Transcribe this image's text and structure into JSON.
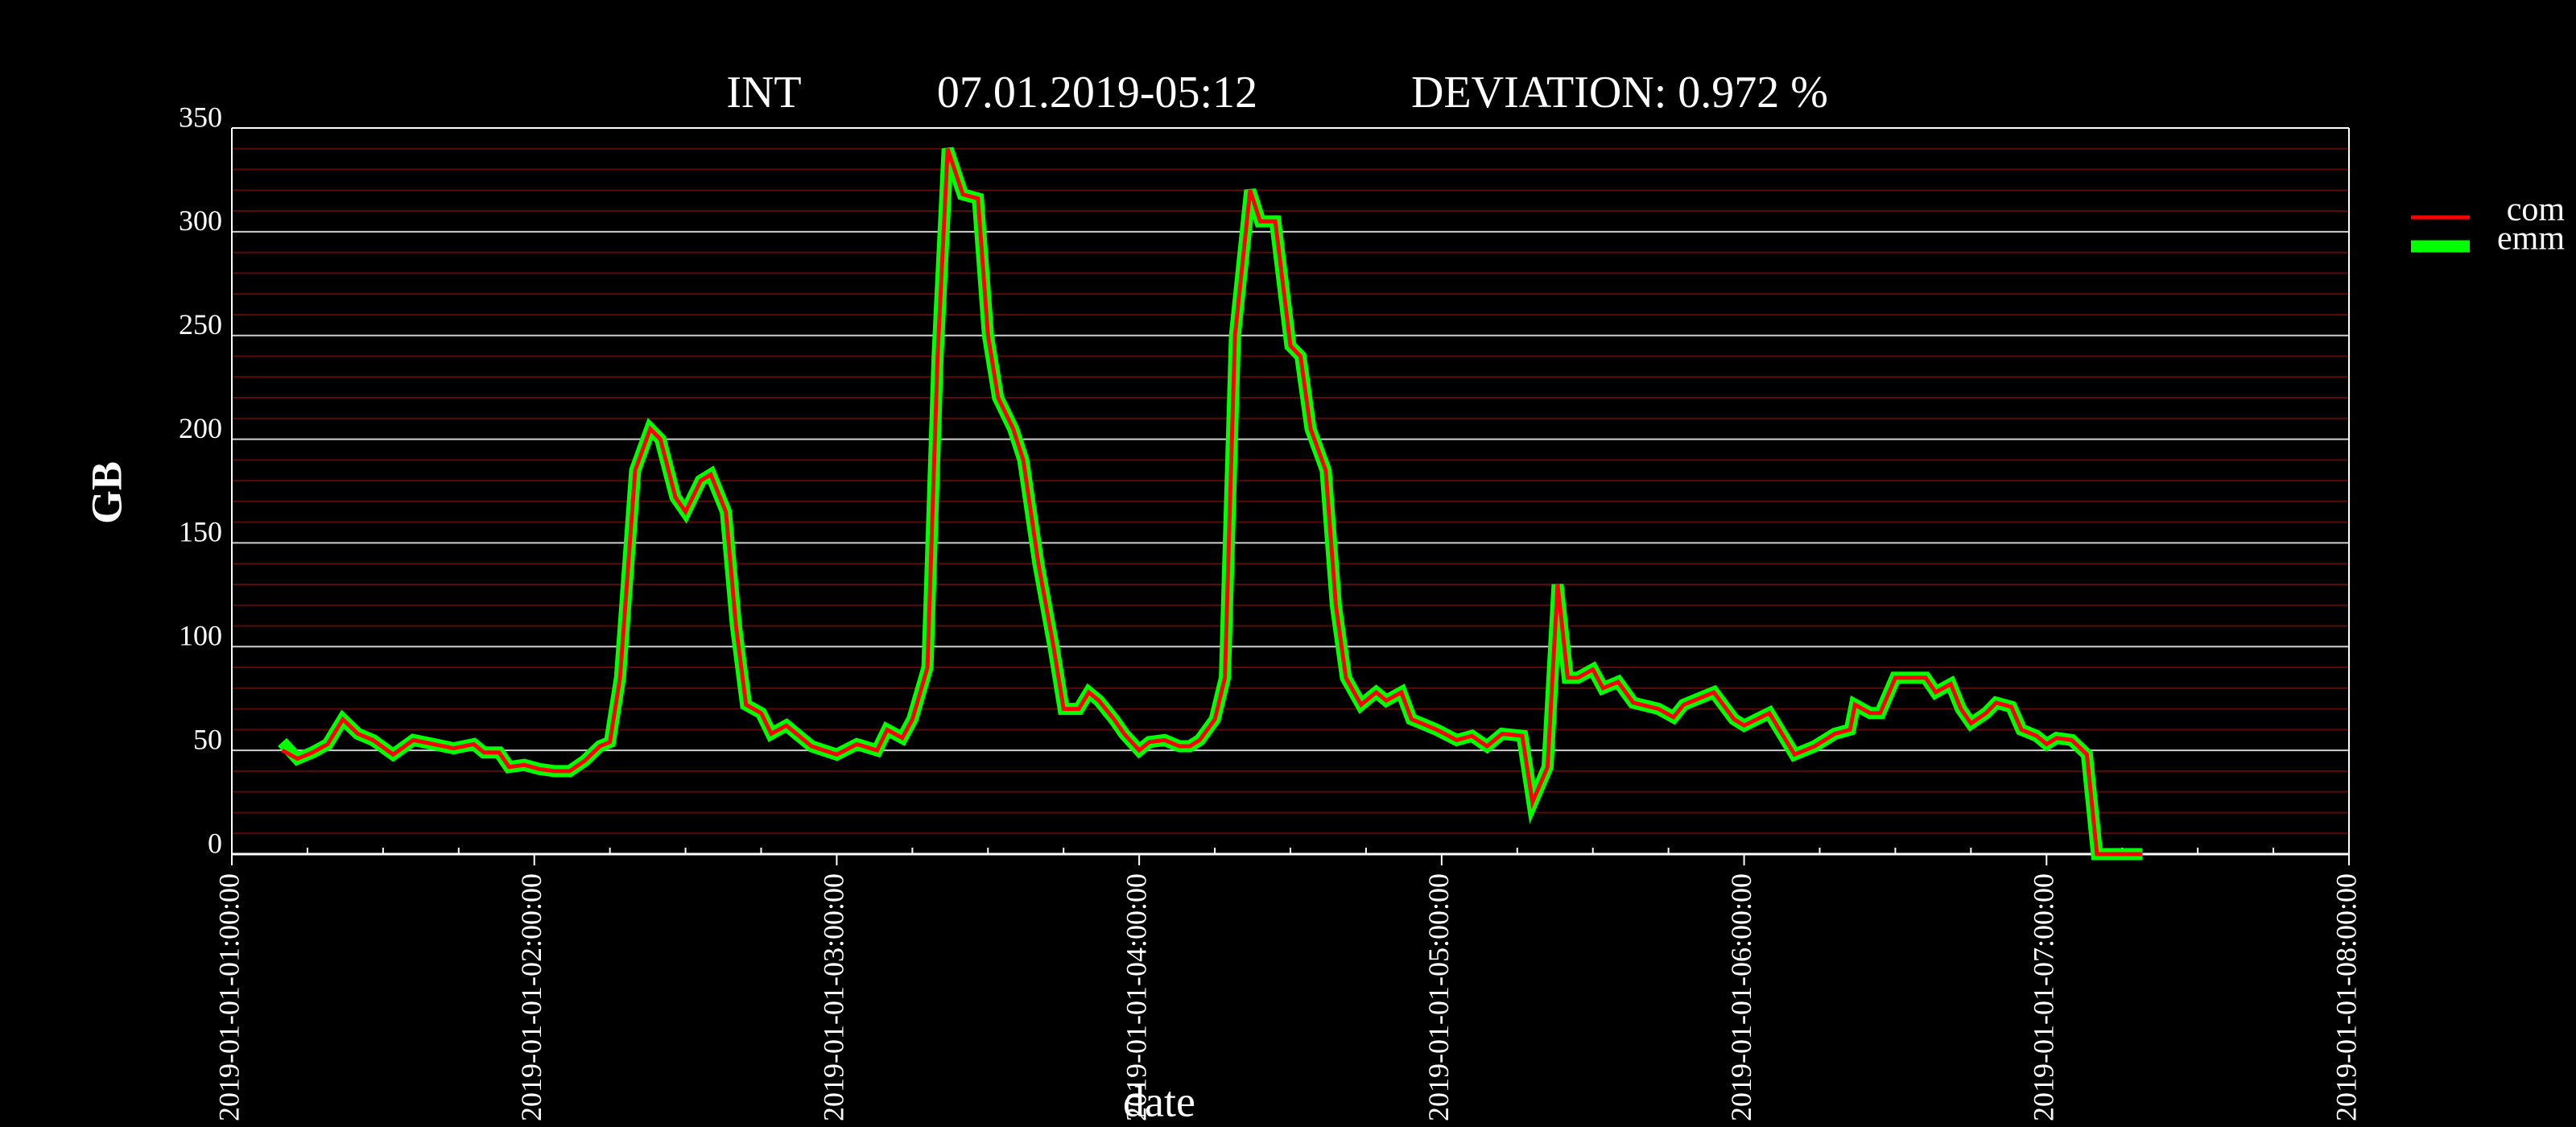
{
  "chart_data": {
    "type": "line",
    "title": "INT",
    "subtitle": "07.01.2019-05:12",
    "annotation": "DEVIATION: 0.972 %",
    "x_label": "date",
    "y_label": "GB",
    "x": [
      "2019-01-01T01:10:00",
      "2019-01-01T01:13:00",
      "2019-01-01T01:16:00",
      "2019-01-01T01:19:00",
      "2019-01-01T01:22:00",
      "2019-01-01T01:25:00",
      "2019-01-01T01:28:00",
      "2019-01-01T01:32:00",
      "2019-01-01T01:36:00",
      "2019-01-01T01:40:00",
      "2019-01-01T01:44:00",
      "2019-01-01T01:48:00",
      "2019-01-01T01:50:00",
      "2019-01-01T01:53:00",
      "2019-01-01T01:55:00",
      "2019-01-01T01:58:00",
      "2019-01-01T02:01:00",
      "2019-01-01T02:04:00",
      "2019-01-01T02:07:00",
      "2019-01-01T02:10:00",
      "2019-01-01T02:13:00",
      "2019-01-01T02:15:00",
      "2019-01-01T02:17:00",
      "2019-01-01T02:20:00",
      "2019-01-01T02:23:00",
      "2019-01-01T02:25:00",
      "2019-01-01T02:28:00",
      "2019-01-01T02:30:00",
      "2019-01-01T02:33:00",
      "2019-01-01T02:35:00",
      "2019-01-01T02:38:00",
      "2019-01-01T02:40:00",
      "2019-01-01T02:42:00",
      "2019-01-01T02:45:00",
      "2019-01-01T02:47:00",
      "2019-01-01T02:50:00",
      "2019-01-01T02:52:00",
      "2019-01-01T02:55:00",
      "2019-01-01T03:00:00",
      "2019-01-01T03:04:00",
      "2019-01-01T03:08:00",
      "2019-01-01T03:10:00",
      "2019-01-01T03:13:00",
      "2019-01-01T03:15:00",
      "2019-01-01T03:18:00",
      "2019-01-01T03:20:00",
      "2019-01-01T03:22:00",
      "2019-01-01T03:25:00",
      "2019-01-01T03:28:00",
      "2019-01-01T03:30:00",
      "2019-01-01T03:32:00",
      "2019-01-01T03:35:00",
      "2019-01-01T03:37:00",
      "2019-01-01T03:40:00",
      "2019-01-01T03:43:00",
      "2019-01-01T03:45:00",
      "2019-01-01T03:48:00",
      "2019-01-01T03:50:00",
      "2019-01-01T03:52:00",
      "2019-01-01T03:55:00",
      "2019-01-01T03:57:00",
      "2019-01-01T04:00:00",
      "2019-01-01T04:02:00",
      "2019-01-01T04:05:00",
      "2019-01-01T04:08:00",
      "2019-01-01T04:10:00",
      "2019-01-01T04:12:00",
      "2019-01-01T04:15:00",
      "2019-01-01T04:17:00",
      "2019-01-01T04:19:00",
      "2019-01-01T04:22:00",
      "2019-01-01T04:24:00",
      "2019-01-01T04:27:00",
      "2019-01-01T04:30:00",
      "2019-01-01T04:32:00",
      "2019-01-01T04:34:00",
      "2019-01-01T04:37:00",
      "2019-01-01T04:39:00",
      "2019-01-01T04:41:00",
      "2019-01-01T04:44:00",
      "2019-01-01T04:47:00",
      "2019-01-01T04:49:00",
      "2019-01-01T04:52:00",
      "2019-01-01T04:54:00",
      "2019-01-01T04:56:00",
      "2019-01-01T04:59:00",
      "2019-01-01T05:03:00",
      "2019-01-01T05:06:00",
      "2019-01-01T05:09:00",
      "2019-01-01T05:12:00",
      "2019-01-01T05:16:00",
      "2019-01-01T05:18:00",
      "2019-01-01T05:21:00",
      "2019-01-01T05:23:00",
      "2019-01-01T05:25:00",
      "2019-01-01T05:27:00",
      "2019-01-01T05:30:00",
      "2019-01-01T05:32:00",
      "2019-01-01T05:35:00",
      "2019-01-01T05:38:00",
      "2019-01-01T05:43:00",
      "2019-01-01T05:46:00",
      "2019-01-01T05:48:00",
      "2019-01-01T05:54:00",
      "2019-01-01T05:58:00",
      "2019-01-01T06:00:00",
      "2019-01-01T06:05:00",
      "2019-01-01T06:07:00",
      "2019-01-01T06:10:00",
      "2019-01-01T06:14:00",
      "2019-01-01T06:18:00",
      "2019-01-01T06:21:00",
      "2019-01-01T06:22:00",
      "2019-01-01T06:25:00",
      "2019-01-01T06:27:00",
      "2019-01-01T06:30:00",
      "2019-01-01T06:36:00",
      "2019-01-01T06:38:00",
      "2019-01-01T06:41:00",
      "2019-01-01T06:43:00",
      "2019-01-01T06:45:00",
      "2019-01-01T06:48:00",
      "2019-01-01T06:50:00",
      "2019-01-01T06:53:00",
      "2019-01-01T06:55:00",
      "2019-01-01T06:58:00",
      "2019-01-01T07:00:00",
      "2019-01-01T07:02:00",
      "2019-01-01T07:05:00",
      "2019-01-01T07:08:00",
      "2019-01-01T07:10:00",
      "2019-01-01T07:19:00"
    ],
    "series": [
      {
        "name": "emm",
        "color": "#00ff00",
        "values": [
          54,
          46,
          49,
          53,
          65,
          58,
          55,
          48,
          55,
          53,
          51,
          53,
          49,
          49,
          42,
          43,
          41,
          40,
          40,
          45,
          52,
          54,
          85,
          185,
          205,
          200,
          172,
          165,
          180,
          183,
          165,
          110,
          72,
          68,
          58,
          62,
          58,
          52,
          48,
          53,
          50,
          60,
          56,
          65,
          90,
          240,
          340,
          318,
          316,
          250,
          220,
          205,
          190,
          140,
          100,
          70,
          70,
          78,
          74,
          65,
          58,
          50,
          54,
          55,
          52,
          52,
          55,
          65,
          85,
          250,
          320,
          305,
          305,
          245,
          240,
          205,
          185,
          120,
          85,
          72,
          78,
          74,
          78,
          65,
          63,
          60,
          55,
          57,
          52,
          58,
          57,
          25,
          42,
          130,
          85,
          85,
          89,
          80,
          83,
          73,
          70,
          66,
          72,
          78,
          65,
          62,
          68,
          60,
          48,
          52,
          58,
          60,
          72,
          68,
          68,
          85,
          85,
          78,
          82,
          70,
          63,
          68,
          73,
          71,
          60,
          57,
          53,
          56,
          55,
          48,
          0,
          0
        ]
      },
      {
        "name": "com",
        "color": "#ff0000",
        "values": [
          50,
          46,
          49,
          53,
          65,
          58,
          55,
          48,
          55,
          53,
          51,
          53,
          49,
          49,
          42,
          43,
          41,
          40,
          40,
          45,
          52,
          54,
          85,
          185,
          205,
          200,
          172,
          165,
          180,
          183,
          165,
          110,
          72,
          68,
          58,
          62,
          58,
          52,
          48,
          53,
          50,
          60,
          56,
          65,
          90,
          240,
          340,
          318,
          316,
          250,
          220,
          205,
          190,
          140,
          100,
          70,
          70,
          78,
          74,
          65,
          58,
          50,
          54,
          55,
          52,
          52,
          55,
          65,
          85,
          250,
          320,
          305,
          305,
          245,
          240,
          205,
          185,
          120,
          85,
          72,
          78,
          74,
          78,
          65,
          63,
          60,
          55,
          57,
          52,
          58,
          57,
          25,
          42,
          130,
          85,
          85,
          89,
          80,
          83,
          73,
          70,
          66,
          72,
          78,
          65,
          62,
          68,
          60,
          48,
          52,
          58,
          60,
          72,
          68,
          68,
          85,
          85,
          78,
          82,
          70,
          63,
          68,
          73,
          71,
          60,
          57,
          53,
          56,
          55,
          48,
          0,
          0
        ]
      }
    ],
    "xlim": [
      "2019-01-01T01:00:00",
      "2019-01-01T08:00:00"
    ],
    "xticks": [
      {
        "value": "2019-01-01T01:00:00",
        "label": "2019-01-01-01:00:00"
      },
      {
        "value": "2019-01-01T02:00:00",
        "label": "2019-01-01-02:00:00"
      },
      {
        "value": "2019-01-01T03:00:00",
        "label": "2019-01-01-03:00:00"
      },
      {
        "value": "2019-01-01T04:00:00",
        "label": "2019-01-01-04:00:00"
      },
      {
        "value": "2019-01-01T05:00:00",
        "label": "2019-01-01-05:00:00"
      },
      {
        "value": "2019-01-01T06:00:00",
        "label": "2019-01-01-06:00:00"
      },
      {
        "value": "2019-01-01T07:00:00",
        "label": "2019-01-01-07:00:00"
      },
      {
        "value": "2019-01-01T08:00:00",
        "label": "2019-01-01-08:00:00"
      }
    ],
    "ylim": [
      0,
      350
    ],
    "yticks": [
      0,
      50,
      100,
      150,
      200,
      250,
      300,
      350
    ],
    "grid": true,
    "legend": "upper right"
  }
}
